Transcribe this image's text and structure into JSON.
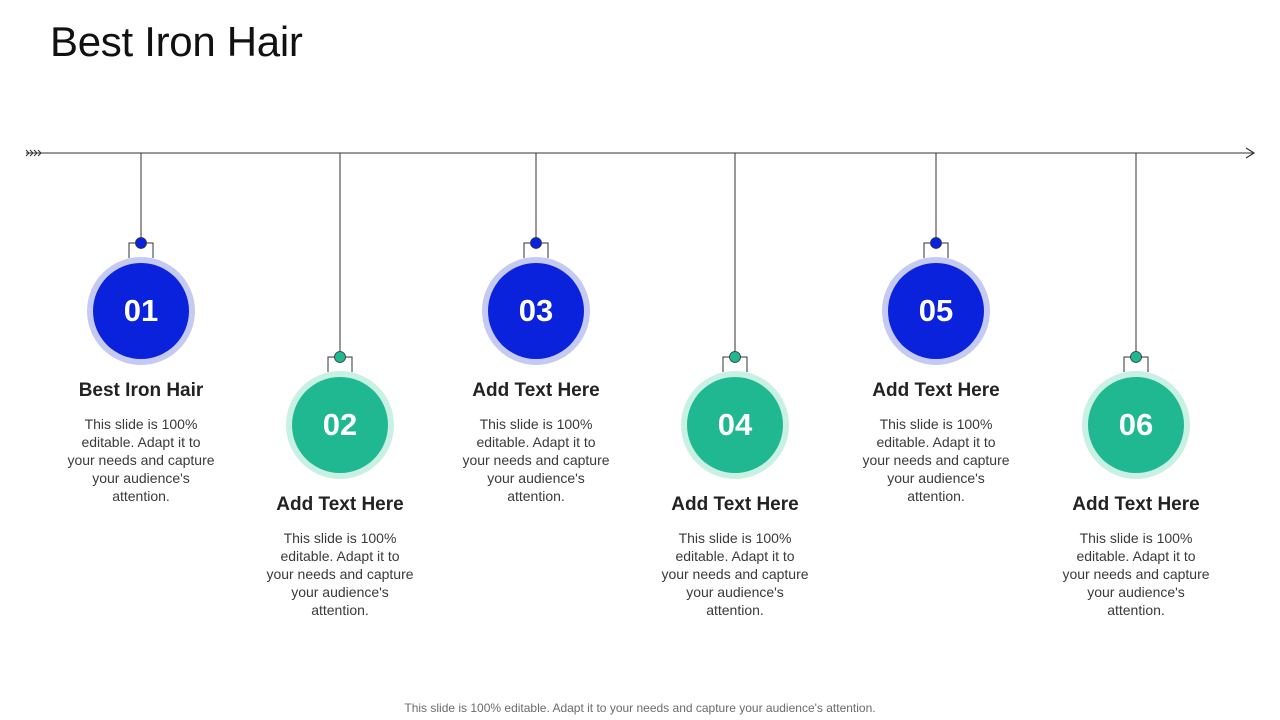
{
  "slide": {
    "title": "Best Iron Hair",
    "footer": "This slide is 100% editable. Adapt it to your needs and capture your audience's attention."
  },
  "colors": {
    "blue": "#0b22dc",
    "blue_ring": "#c4caf1",
    "green": "#1fb890",
    "green_ring": "#c8f1e3",
    "line": "#333333"
  },
  "steps": [
    {
      "number": "01",
      "heading": "Best Iron Hair",
      "description": "This slide is 100% editable. Adapt it to your needs and capture your audience's attention.",
      "color": "blue"
    },
    {
      "number": "02",
      "heading": "Add Text Here",
      "description": "This slide is 100% editable. Adapt it to your needs and capture your audience's attention.",
      "color": "green"
    },
    {
      "number": "03",
      "heading": "Add Text Here",
      "description": "This slide is 100% editable. Adapt it to your needs and capture your audience's attention.",
      "color": "blue"
    },
    {
      "number": "04",
      "heading": "Add Text Here",
      "description": "This slide is 100% editable. Adapt it to your needs and capture your audience's attention.",
      "color": "green"
    },
    {
      "number": "05",
      "heading": "Add Text Here",
      "description": "This slide is 100% editable. Adapt it to your needs and capture your audience's attention.",
      "color": "blue"
    },
    {
      "number": "06",
      "heading": "Add Text Here",
      "description": "This slide is 100% editable. Adapt it to your needs and capture your audience's attention.",
      "color": "green"
    }
  ]
}
